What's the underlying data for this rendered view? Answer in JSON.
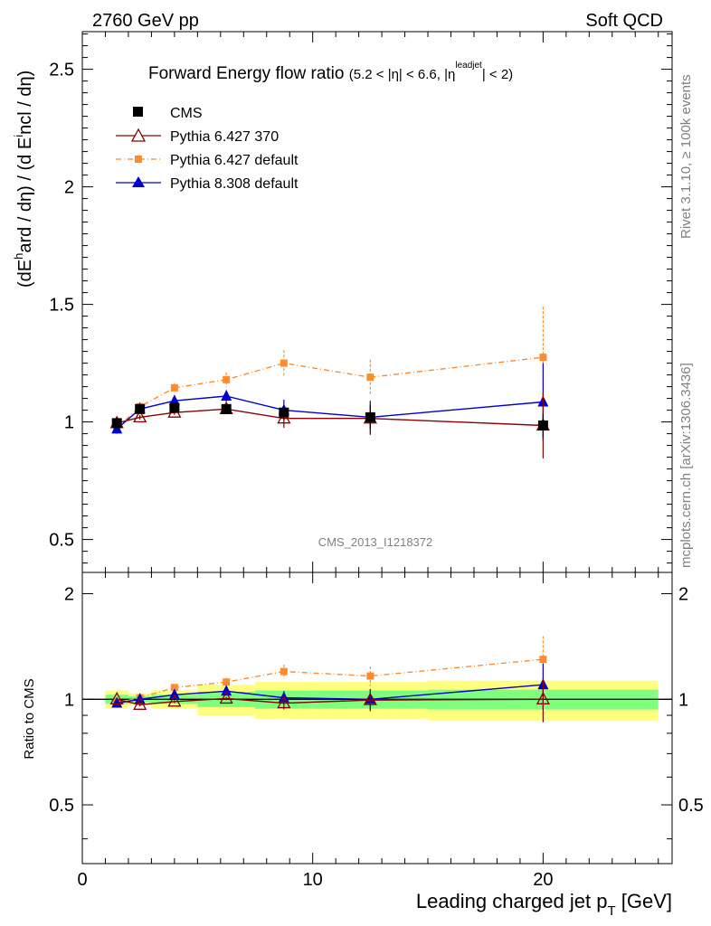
{
  "header": {
    "left": "2760 GeV pp",
    "right": "Soft QCD"
  },
  "side_text": {
    "rivet": "Rivet 3.1.10, ≥ 100k events",
    "mcplots": "mcplots.cern.ch [arXiv:1306.3436]"
  },
  "watermark": "CMS_2013_I1218372",
  "colors": {
    "cms": "#000000",
    "p6_370": "#8b0000",
    "p6_default": "#ff8c2e",
    "p8_default": "#0000cd",
    "band_outer": "#ffff7f",
    "band_inner": "#7fff7f"
  },
  "chart_data": [
    {
      "type": "scatter",
      "title": "Forward Energy flow ratio",
      "title_cuts": "(5.2 < |η| < 6.6, |η^leadjet| < 2)",
      "ylabel": "(dE^hard / dη) / (d E^incl / dη)",
      "xlim": [
        0,
        25.6
      ],
      "ylim": [
        0.36,
        2.66
      ],
      "yticks": [
        0.5,
        1,
        1.5,
        2,
        2.5
      ],
      "ytick_labels": [
        "0.5",
        "1",
        "1.5",
        "2",
        "2.5"
      ],
      "legend_position": "top-left",
      "x": [
        1.5,
        2.5,
        4.0,
        6.25,
        8.75,
        12.5,
        20.0
      ],
      "series": [
        {
          "name": "CMS",
          "values": [
            0.995,
            1.055,
            1.06,
            1.055,
            1.04,
            1.02,
            0.985
          ],
          "errors": [
            0.02,
            0.02,
            0.02,
            0.02,
            0.03,
            0.05,
            0.05
          ]
        },
        {
          "name": "Pythia 6.427 370",
          "values": [
            0.995,
            1.02,
            1.04,
            1.055,
            1.015,
            1.015,
            0.985
          ],
          "errors": [
            0.01,
            0.01,
            0.01,
            0.01,
            0.04,
            0.07,
            0.14
          ]
        },
        {
          "name": "Pythia 6.427 default",
          "values": [
            0.975,
            1.065,
            1.145,
            1.18,
            1.25,
            1.19,
            1.275
          ],
          "errors": [
            0.02,
            0.02,
            0.02,
            0.03,
            0.055,
            0.075,
            0.215
          ]
        },
        {
          "name": "Pythia 8.308 default",
          "values": [
            0.97,
            1.055,
            1.09,
            1.11,
            1.05,
            1.02,
            1.085
          ],
          "errors": [
            0.02,
            0.02,
            0.02,
            0.025,
            0.045,
            0.07,
            0.165
          ]
        }
      ]
    },
    {
      "type": "scatter",
      "xlabel": "Leading charged jet p_T [GeV]",
      "ylabel": "Ratio to CMS",
      "xlim": [
        0,
        25.6
      ],
      "ylim": [
        0.34,
        2.3
      ],
      "log_y": true,
      "yticks": [
        0.5,
        1,
        2
      ],
      "ytick_labels": [
        "0.5",
        "1",
        "2"
      ],
      "xticks": [
        0,
        10,
        20
      ],
      "xtick_labels": [
        "0",
        "10",
        "20"
      ],
      "x": [
        1.5,
        2.5,
        4.0,
        6.25,
        8.75,
        12.5,
        20.0
      ],
      "band_edges": [
        1.0,
        2.0,
        3.0,
        5.0,
        7.5,
        10.0,
        15.0,
        25.0
      ],
      "band_outer": [
        0.06,
        0.04,
        0.06,
        0.1,
        0.12,
        0.12,
        0.13
      ],
      "band_inner": [
        0.03,
        0.02,
        0.03,
        0.05,
        0.06,
        0.06,
        0.065
      ],
      "series": [
        {
          "name": "Pythia 6.427 370",
          "values": [
            1.0,
            0.965,
            0.985,
            1.005,
            0.975,
            0.995,
            1.0
          ],
          "errors": [
            0.01,
            0.01,
            0.01,
            0.01,
            0.04,
            0.07,
            0.14
          ]
        },
        {
          "name": "Pythia 6.427 default",
          "values": [
            0.98,
            1.01,
            1.08,
            1.12,
            1.2,
            1.165,
            1.3
          ],
          "errors": [
            0.02,
            0.02,
            0.02,
            0.03,
            0.055,
            0.075,
            0.215
          ]
        },
        {
          "name": "Pythia 8.308 default",
          "values": [
            0.975,
            1.0,
            1.03,
            1.055,
            1.01,
            1.0,
            1.1
          ],
          "errors": [
            0.02,
            0.02,
            0.02,
            0.025,
            0.045,
            0.07,
            0.165
          ]
        }
      ]
    }
  ]
}
